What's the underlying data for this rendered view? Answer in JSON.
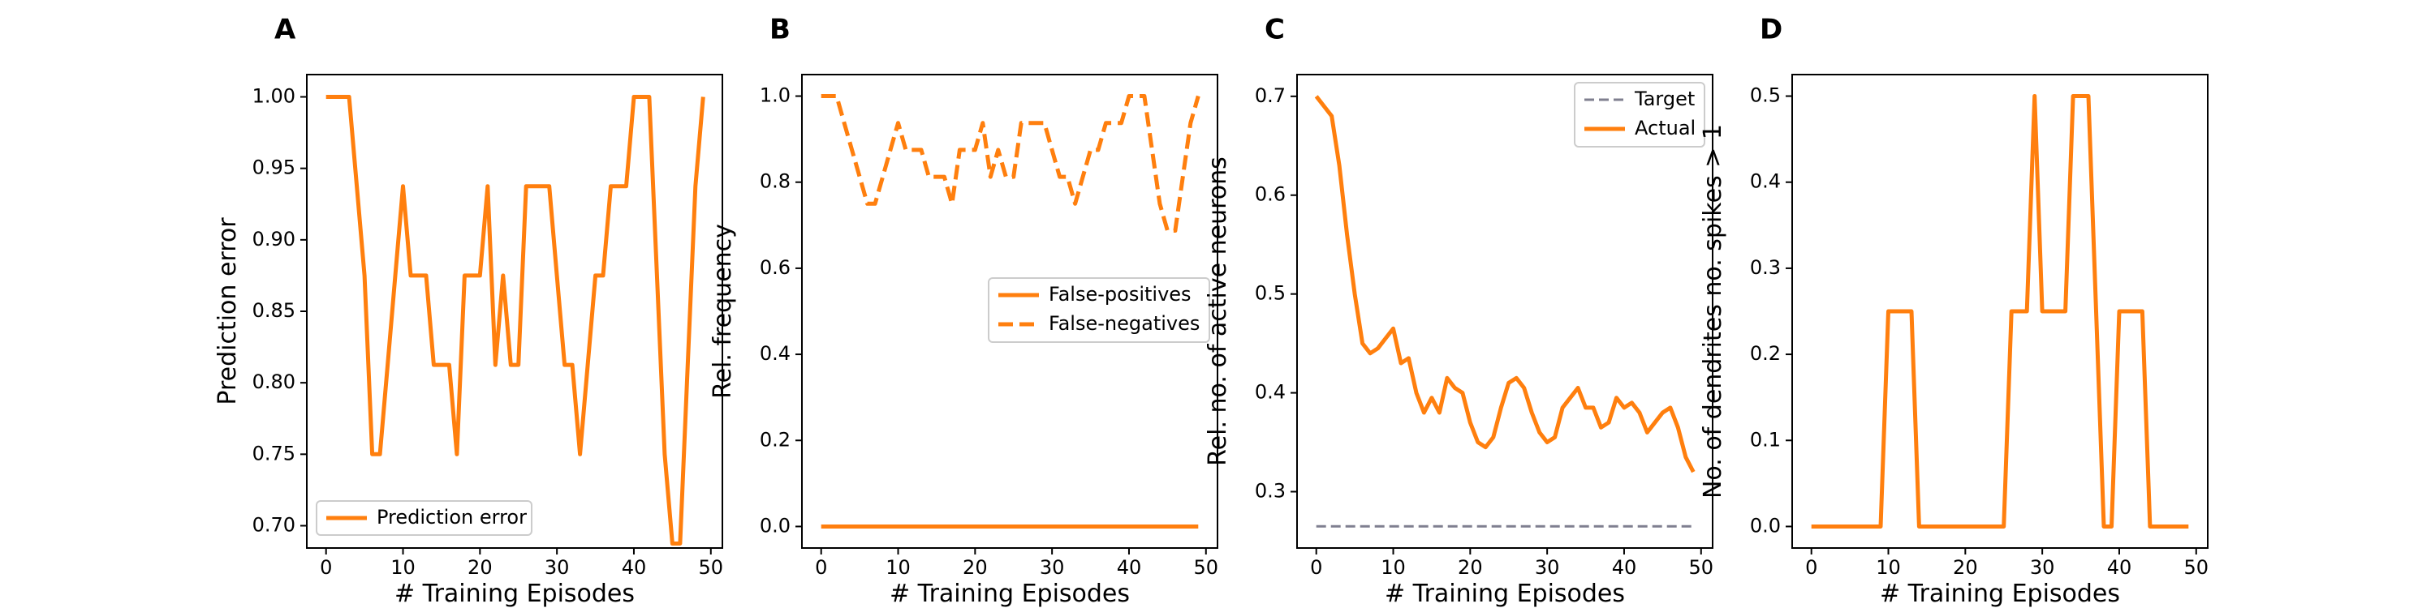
{
  "chart_data": [
    {
      "panel": "A",
      "type": "line",
      "xlabel": "# Training Episodes",
      "ylabel": "Prediction error",
      "xlim": [
        -2.5,
        51.5
      ],
      "ylim": [
        0.6844,
        1.0156
      ],
      "xticks": [
        0,
        10,
        20,
        30,
        40,
        50
      ],
      "yticks": [
        0.7,
        0.75,
        0.8,
        0.85,
        0.9,
        0.95,
        1.0
      ],
      "ytick_labels": [
        "0.70",
        "0.75",
        "0.80",
        "0.85",
        "0.90",
        "0.95",
        "1.00"
      ],
      "legend": "lower-left",
      "series": [
        {
          "name": "Prediction error",
          "style": "solid",
          "color": "#ff7f0e",
          "x": [
            0,
            1,
            2,
            3,
            4,
            5,
            6,
            7,
            8,
            9,
            10,
            11,
            12,
            13,
            14,
            15,
            16,
            17,
            18,
            19,
            20,
            21,
            22,
            23,
            24,
            25,
            26,
            27,
            28,
            29,
            30,
            31,
            32,
            33,
            34,
            35,
            36,
            37,
            38,
            39,
            40,
            41,
            42,
            43,
            44,
            45,
            46,
            47,
            48,
            49
          ],
          "values": [
            1.0,
            1.0,
            1.0,
            1.0,
            0.9375,
            0.875,
            0.75,
            0.75,
            0.8125,
            0.875,
            0.9375,
            0.875,
            0.875,
            0.875,
            0.8125,
            0.8125,
            0.8125,
            0.75,
            0.875,
            0.875,
            0.875,
            0.9375,
            0.8125,
            0.875,
            0.8125,
            0.8125,
            0.9375,
            0.9375,
            0.9375,
            0.9375,
            0.875,
            0.8125,
            0.8125,
            0.75,
            0.8125,
            0.875,
            0.875,
            0.9375,
            0.9375,
            0.9375,
            1.0,
            1.0,
            1.0,
            0.875,
            0.75,
            0.6875,
            0.6875,
            0.8125,
            0.9375,
            1.0
          ]
        }
      ]
    },
    {
      "panel": "B",
      "type": "line",
      "xlabel": "# Training Episodes",
      "ylabel": "Rel. frequency",
      "xlim": [
        -2.5,
        51.5
      ],
      "ylim": [
        -0.05,
        1.05
      ],
      "xticks": [
        0,
        10,
        20,
        30,
        40,
        50
      ],
      "yticks": [
        0.0,
        0.2,
        0.4,
        0.6,
        0.8,
        1.0
      ],
      "ytick_labels": [
        "0.0",
        "0.2",
        "0.4",
        "0.6",
        "0.8",
        "1.0"
      ],
      "legend": "center-right",
      "series": [
        {
          "name": "False-positives",
          "style": "solid",
          "color": "#ff7f0e",
          "x": [
            0,
            1,
            2,
            3,
            4,
            5,
            6,
            7,
            8,
            9,
            10,
            11,
            12,
            13,
            14,
            15,
            16,
            17,
            18,
            19,
            20,
            21,
            22,
            23,
            24,
            25,
            26,
            27,
            28,
            29,
            30,
            31,
            32,
            33,
            34,
            35,
            36,
            37,
            38,
            39,
            40,
            41,
            42,
            43,
            44,
            45,
            46,
            47,
            48,
            49
          ],
          "values": [
            0,
            0,
            0,
            0,
            0,
            0,
            0,
            0,
            0,
            0,
            0,
            0,
            0,
            0,
            0,
            0,
            0,
            0,
            0,
            0,
            0,
            0,
            0,
            0,
            0,
            0,
            0,
            0,
            0,
            0,
            0,
            0,
            0,
            0,
            0,
            0,
            0,
            0,
            0,
            0,
            0,
            0,
            0,
            0,
            0,
            0,
            0,
            0,
            0,
            0
          ]
        },
        {
          "name": "False-negatives",
          "style": "dashed",
          "color": "#ff7f0e",
          "x": [
            0,
            1,
            2,
            3,
            4,
            5,
            6,
            7,
            8,
            9,
            10,
            11,
            12,
            13,
            14,
            15,
            16,
            17,
            18,
            19,
            20,
            21,
            22,
            23,
            24,
            25,
            26,
            27,
            28,
            29,
            30,
            31,
            32,
            33,
            34,
            35,
            36,
            37,
            38,
            39,
            40,
            41,
            42,
            43,
            44,
            45,
            46,
            47,
            48,
            49
          ],
          "values": [
            1.0,
            1.0,
            1.0,
            0.9375,
            0.875,
            0.8125,
            0.75,
            0.75,
            0.8125,
            0.875,
            0.9375,
            0.875,
            0.875,
            0.875,
            0.8125,
            0.8125,
            0.8125,
            0.75,
            0.875,
            0.875,
            0.875,
            0.9375,
            0.8125,
            0.875,
            0.8125,
            0.8125,
            0.9375,
            0.9375,
            0.9375,
            0.9375,
            0.875,
            0.8125,
            0.8125,
            0.75,
            0.8125,
            0.875,
            0.875,
            0.9375,
            0.9375,
            0.9375,
            1.0,
            1.0,
            1.0,
            0.875,
            0.75,
            0.6875,
            0.6875,
            0.8125,
            0.9375,
            1.0
          ]
        }
      ]
    },
    {
      "panel": "C",
      "type": "line",
      "xlabel": "# Training Episodes",
      "ylabel": "Rel. no. of active neurons",
      "xlim": [
        -2.5,
        51.5
      ],
      "ylim": [
        0.243,
        0.722
      ],
      "xticks": [
        0,
        10,
        20,
        30,
        40,
        50
      ],
      "yticks": [
        0.3,
        0.4,
        0.5,
        0.6,
        0.7
      ],
      "ytick_labels": [
        "0.3",
        "0.4",
        "0.5",
        "0.6",
        "0.7"
      ],
      "legend": "top-right",
      "series": [
        {
          "name": "Target",
          "style": "dashed",
          "color": "#7f7f8f",
          "x": [
            0,
            49
          ],
          "values": [
            0.265,
            0.265
          ]
        },
        {
          "name": "Actual",
          "style": "solid",
          "color": "#ff7f0e",
          "x": [
            0,
            1,
            2,
            3,
            4,
            5,
            6,
            7,
            8,
            9,
            10,
            11,
            12,
            13,
            14,
            15,
            16,
            17,
            18,
            19,
            20,
            21,
            22,
            23,
            24,
            25,
            26,
            27,
            28,
            29,
            30,
            31,
            32,
            33,
            34,
            35,
            36,
            37,
            38,
            39,
            40,
            41,
            42,
            43,
            44,
            45,
            46,
            47,
            48,
            49
          ],
          "values": [
            0.7,
            0.69,
            0.68,
            0.63,
            0.56,
            0.5,
            0.45,
            0.44,
            0.445,
            0.455,
            0.465,
            0.43,
            0.435,
            0.4,
            0.38,
            0.395,
            0.38,
            0.415,
            0.405,
            0.4,
            0.37,
            0.35,
            0.345,
            0.355,
            0.385,
            0.41,
            0.415,
            0.405,
            0.38,
            0.36,
            0.35,
            0.355,
            0.385,
            0.395,
            0.405,
            0.385,
            0.385,
            0.365,
            0.37,
            0.395,
            0.385,
            0.39,
            0.38,
            0.36,
            0.37,
            0.38,
            0.385,
            0.365,
            0.335,
            0.32
          ]
        }
      ]
    },
    {
      "panel": "D",
      "type": "line",
      "xlabel": "# Training Episodes",
      "ylabel": "No. of dendrites no. spikes > 1",
      "xlim": [
        -2.5,
        51.5
      ],
      "ylim": [
        -0.025,
        0.525
      ],
      "xticks": [
        0,
        10,
        20,
        30,
        40,
        50
      ],
      "yticks": [
        0.0,
        0.1,
        0.2,
        0.3,
        0.4,
        0.5
      ],
      "ytick_labels": [
        "0.0",
        "0.1",
        "0.2",
        "0.3",
        "0.4",
        "0.5"
      ],
      "legend": "none",
      "series": [
        {
          "name": "",
          "style": "solid",
          "color": "#ff7f0e",
          "x": [
            0,
            1,
            2,
            3,
            4,
            5,
            6,
            7,
            8,
            9,
            10,
            11,
            12,
            13,
            14,
            15,
            16,
            17,
            18,
            19,
            20,
            21,
            22,
            23,
            24,
            25,
            26,
            27,
            28,
            29,
            30,
            31,
            32,
            33,
            34,
            35,
            36,
            37,
            38,
            39,
            40,
            41,
            42,
            43,
            44,
            45,
            46,
            47,
            48,
            49
          ],
          "values": [
            0,
            0,
            0,
            0,
            0,
            0,
            0,
            0,
            0,
            0,
            0.25,
            0.25,
            0.25,
            0.25,
            0,
            0,
            0,
            0,
            0,
            0,
            0,
            0,
            0,
            0,
            0,
            0,
            0.25,
            0.25,
            0.25,
            0.5,
            0.25,
            0.25,
            0.25,
            0.25,
            0.5,
            0.5,
            0.5,
            0.25,
            0,
            0,
            0.25,
            0.25,
            0.25,
            0.25,
            0,
            0,
            0,
            0,
            0,
            0
          ]
        }
      ]
    }
  ]
}
